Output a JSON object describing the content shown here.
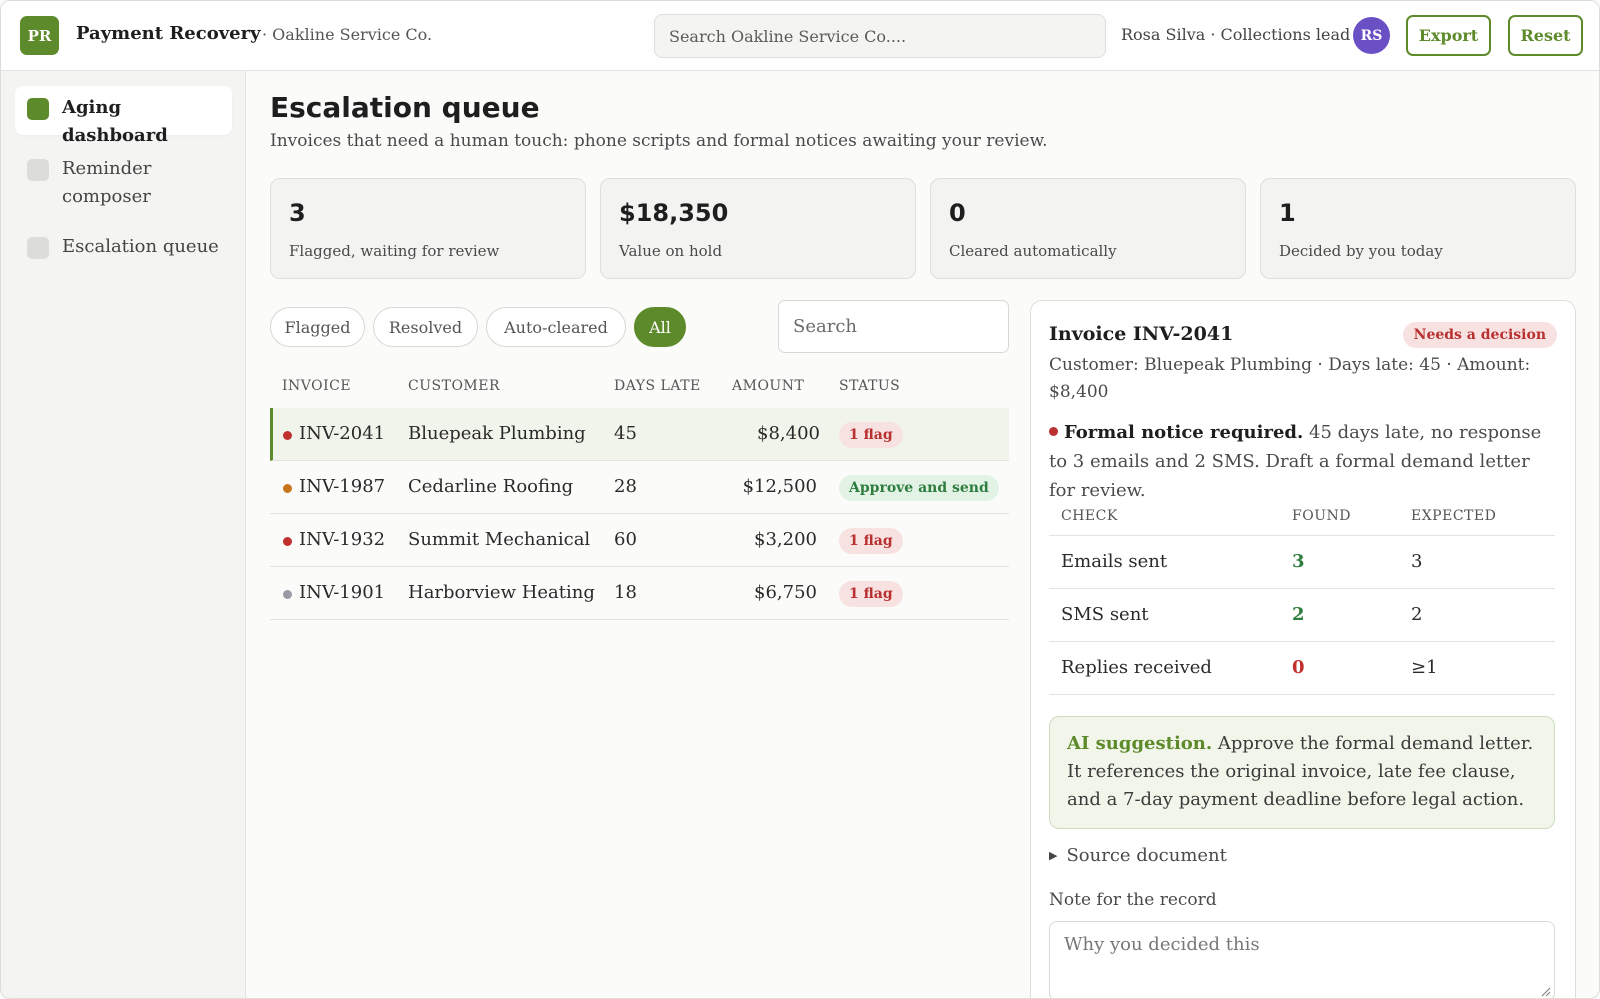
{
  "app": {
    "logo": "PR",
    "title": "Payment Recovery",
    "org": "· Oakline Service Co."
  },
  "topbar": {
    "search_placeholder": "Search Oakline Service Co....",
    "user": "Rosa Silva · Collections lead",
    "avatar": "RS",
    "export_label": "Export",
    "reset_label": "Reset"
  },
  "sidebar": {
    "items": [
      {
        "label": "Aging dashboard",
        "active": true
      },
      {
        "label": "Reminder composer",
        "active": false
      },
      {
        "label": "Escalation queue",
        "active": false
      }
    ]
  },
  "main": {
    "title": "Escalation queue",
    "subtitle": "Invoices that need a human touch: phone scripts and formal notices awaiting your review."
  },
  "stats": [
    {
      "value": "3",
      "label": "Flagged, waiting for review"
    },
    {
      "value": "$18,350",
      "label": "Value on hold"
    },
    {
      "value": "0",
      "label": "Cleared automatically"
    },
    {
      "value": "1",
      "label": "Decided by you today"
    }
  ],
  "filters": {
    "chips": [
      "Flagged",
      "Resolved",
      "Auto-cleared",
      "All"
    ],
    "active": "All",
    "search_placeholder": "Search"
  },
  "table": {
    "headers": [
      "INVOICE",
      "CUSTOMER",
      "DAYS LATE",
      "AMOUNT",
      "STATUS"
    ],
    "rows": [
      {
        "invoice": "INV-2041",
        "customer": "Bluepeak Plumbing",
        "days_late": "45",
        "amount": "$8,400",
        "status": "1 flag",
        "dot_color": "#c0302f",
        "selected": true
      },
      {
        "invoice": "INV-1987",
        "customer": "Cedarline Roofing",
        "days_late": "28",
        "amount": "$12,500",
        "status": "Approve and send",
        "dot_color": "#c8761e",
        "selected": false
      },
      {
        "invoice": "INV-1932",
        "customer": "Summit Mechanical",
        "days_late": "60",
        "amount": "$3,200",
        "status": "1 flag",
        "dot_color": "#c0302f",
        "selected": false
      },
      {
        "invoice": "INV-1901",
        "customer": "Harborview Heating",
        "days_late": "18",
        "amount": "$6,750",
        "status": "1 flag",
        "dot_color": "#9a9aa6",
        "selected": false
      }
    ]
  },
  "detail": {
    "title": "Invoice INV-2041",
    "badge": "Needs a decision",
    "meta": "Customer: Bluepeak Plumbing · Days late: 45 · Amount: $8,400",
    "notice_bold": "Formal notice required.",
    "notice_text": " 45 days late, no response to 3 emails and 2 SMS. Draft a formal demand letter for review.",
    "check_headers": [
      "CHECK",
      "FOUND",
      "EXPECTED"
    ],
    "checks": [
      {
        "check": "Emails sent",
        "found": "3",
        "expected": "3",
        "ok": true
      },
      {
        "check": "SMS sent",
        "found": "2",
        "expected": "2",
        "ok": true
      },
      {
        "check": "Replies received",
        "found": "0",
        "expected": "≥1",
        "ok": false
      }
    ],
    "ai_label": "AI suggestion.",
    "ai_text": " Approve the formal demand letter. It references the original invoice, late fee clause, and a 7-day payment deadline before legal action.",
    "source_label": "Source document",
    "note_label": "Note for the record",
    "note_placeholder": "Why you decided this"
  },
  "colors": {
    "accent": "#5d8a2a",
    "flag": "#b8302f",
    "ok": "#2e7d3e",
    "avatar": "#6b4fc4"
  }
}
